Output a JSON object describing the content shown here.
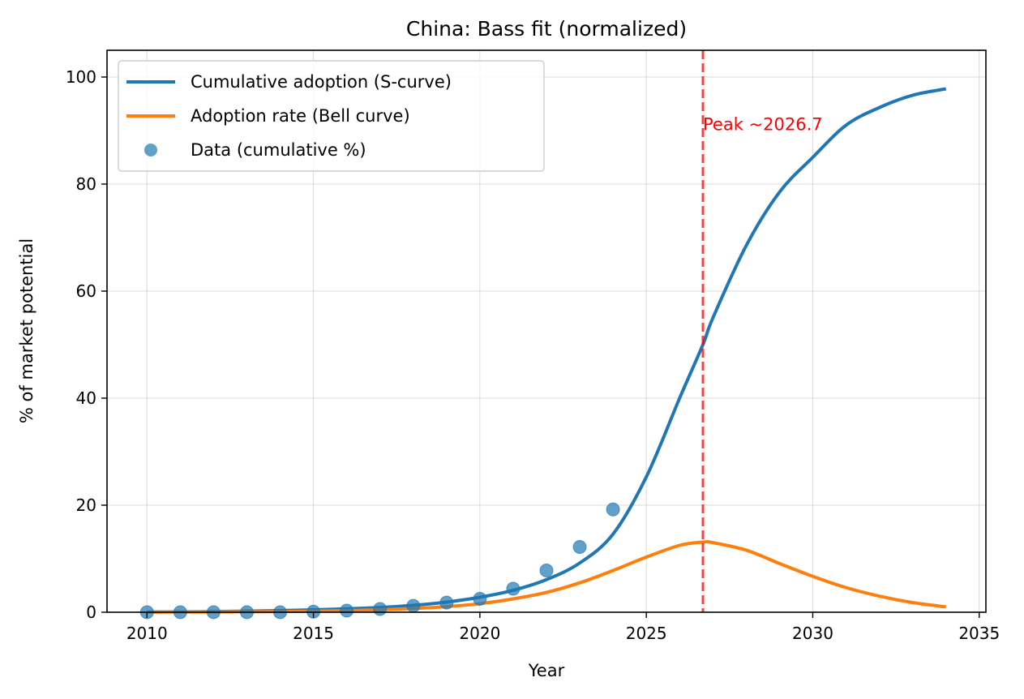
{
  "chart_data": {
    "type": "line",
    "title": "China: Bass fit (normalized)",
    "xlabel": "Year",
    "ylabel": "% of market potential",
    "xlim": [
      2008.8,
      2035.2
    ],
    "ylim": [
      0,
      105
    ],
    "xticks": [
      2010,
      2015,
      2020,
      2025,
      2030,
      2035
    ],
    "yticks": [
      0,
      20,
      40,
      60,
      80,
      100
    ],
    "grid": true,
    "legend_position": "upper left",
    "series": [
      {
        "name": "Cumulative adoption (S-curve)",
        "kind": "line",
        "color": "#1f77b4",
        "x": [
          2010,
          2011,
          2012,
          2013,
          2014,
          2015,
          2016,
          2017,
          2018,
          2019,
          2020,
          2021,
          2022,
          2023,
          2024,
          2025,
          2026,
          2026.7,
          2027,
          2028,
          2029,
          2030,
          2031,
          2032,
          2033,
          2034
        ],
        "y": [
          0.05,
          0.08,
          0.13,
          0.2,
          0.3,
          0.45,
          0.65,
          0.9,
          1.3,
          1.9,
          2.8,
          4.1,
          6.1,
          9.2,
          14.6,
          25.3,
          40.0,
          50.0,
          55.0,
          68.5,
          78.5,
          85.0,
          91.0,
          94.3,
          96.6,
          97.8
        ]
      },
      {
        "name": "Adoption rate (Bell curve)",
        "kind": "line",
        "color": "#ff7f0e",
        "x": [
          2010,
          2011,
          2012,
          2013,
          2014,
          2015,
          2016,
          2017,
          2018,
          2019,
          2020,
          2021,
          2022,
          2023,
          2024,
          2025,
          2026,
          2026.7,
          2027,
          2028,
          2029,
          2030,
          2031,
          2032,
          2033,
          2034
        ],
        "y": [
          0.02,
          0.04,
          0.06,
          0.09,
          0.13,
          0.2,
          0.3,
          0.45,
          0.7,
          1.05,
          1.6,
          2.5,
          3.7,
          5.5,
          7.8,
          10.3,
          12.5,
          13.1,
          13.0,
          11.6,
          9.1,
          6.7,
          4.6,
          3.0,
          1.8,
          1.0
        ]
      },
      {
        "name": "Data (cumulative %)",
        "kind": "scatter",
        "color": "#1f77b4",
        "x": [
          2010,
          2011,
          2012,
          2013,
          2014,
          2015,
          2016,
          2017,
          2018,
          2019,
          2020,
          2021,
          2022,
          2023,
          2024
        ],
        "y": [
          0.0,
          0.0,
          0.0,
          0.0,
          0.0,
          0.1,
          0.3,
          0.6,
          1.2,
          1.8,
          2.5,
          4.4,
          7.8,
          12.2,
          19.2
        ]
      }
    ],
    "annotations": [
      {
        "kind": "vline",
        "x": 2026.7,
        "color": "#ff0000",
        "style": "dashed"
      },
      {
        "kind": "text",
        "text": "Peak ~2026.7",
        "x": 2026.7,
        "y": 91,
        "color": "#ff0000"
      }
    ]
  }
}
